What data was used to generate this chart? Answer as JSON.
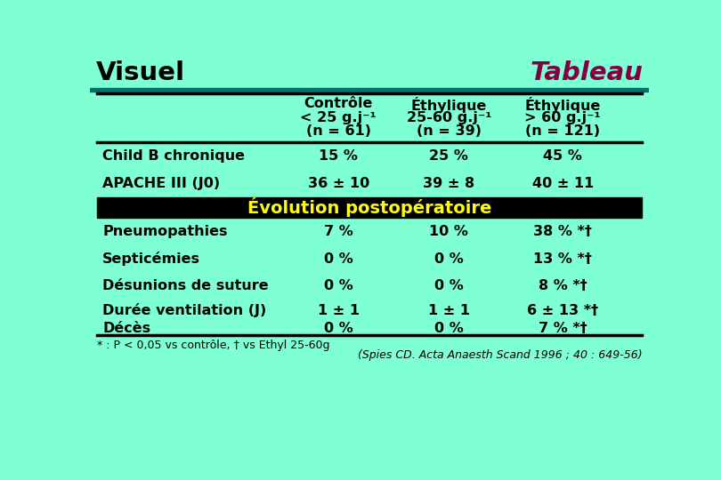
{
  "title_left": "Visuel",
  "title_right": "Tableau",
  "bg_color": "#7FFFD4",
  "separator_color": "#000000",
  "dark_maroon": "#800040",
  "teal_line": "#007070",
  "yellow": "#FFFF00",
  "col_header_lines": [
    [
      "Contrôle",
      "< 25 g.j⁻¹",
      "(n = 61)"
    ],
    [
      "Éthylique",
      "25-60 g.j⁻¹",
      "(n = 39)"
    ],
    [
      "Éthylique",
      "> 60 g.j⁻¹",
      "(n = 121)"
    ]
  ],
  "rows": [
    {
      "label": "Child B chronique",
      "values": [
        "15 %",
        "25 %",
        "45 %"
      ],
      "section_header": false
    },
    {
      "label": "APACHE III (J0)",
      "values": [
        "36 ± 10",
        "39 ± 8",
        "40 ± 11"
      ],
      "section_header": false
    },
    {
      "label": "Évolution postopératoire",
      "values": [],
      "section_header": true
    },
    {
      "label": "Pneumopathies",
      "values": [
        "7 %",
        "10 %",
        "38 % *†"
      ],
      "section_header": false
    },
    {
      "label": "Septicémies",
      "values": [
        "0 %",
        "0 %",
        "13 % *†"
      ],
      "section_header": false
    },
    {
      "label": "Désunions de suture",
      "values": [
        "0 %",
        "0 %",
        "8 % *†"
      ],
      "section_header": false
    },
    {
      "label1": "Durée ventilation (J)",
      "label2": "Décès",
      "values1": [
        "1 ± 1",
        "1 ± 1",
        "6 ± 13 *†"
      ],
      "values2": [
        "0 %",
        "0 %",
        "7 % *†"
      ],
      "section_header": false,
      "double": true
    }
  ],
  "footnote1": "* : P < 0,05 vs contrôle, † vs Ethyl 25-60g",
  "footnote2": "(Spies CD. Acta Anaesth Scand 1996 ; 40 : 649-56)"
}
